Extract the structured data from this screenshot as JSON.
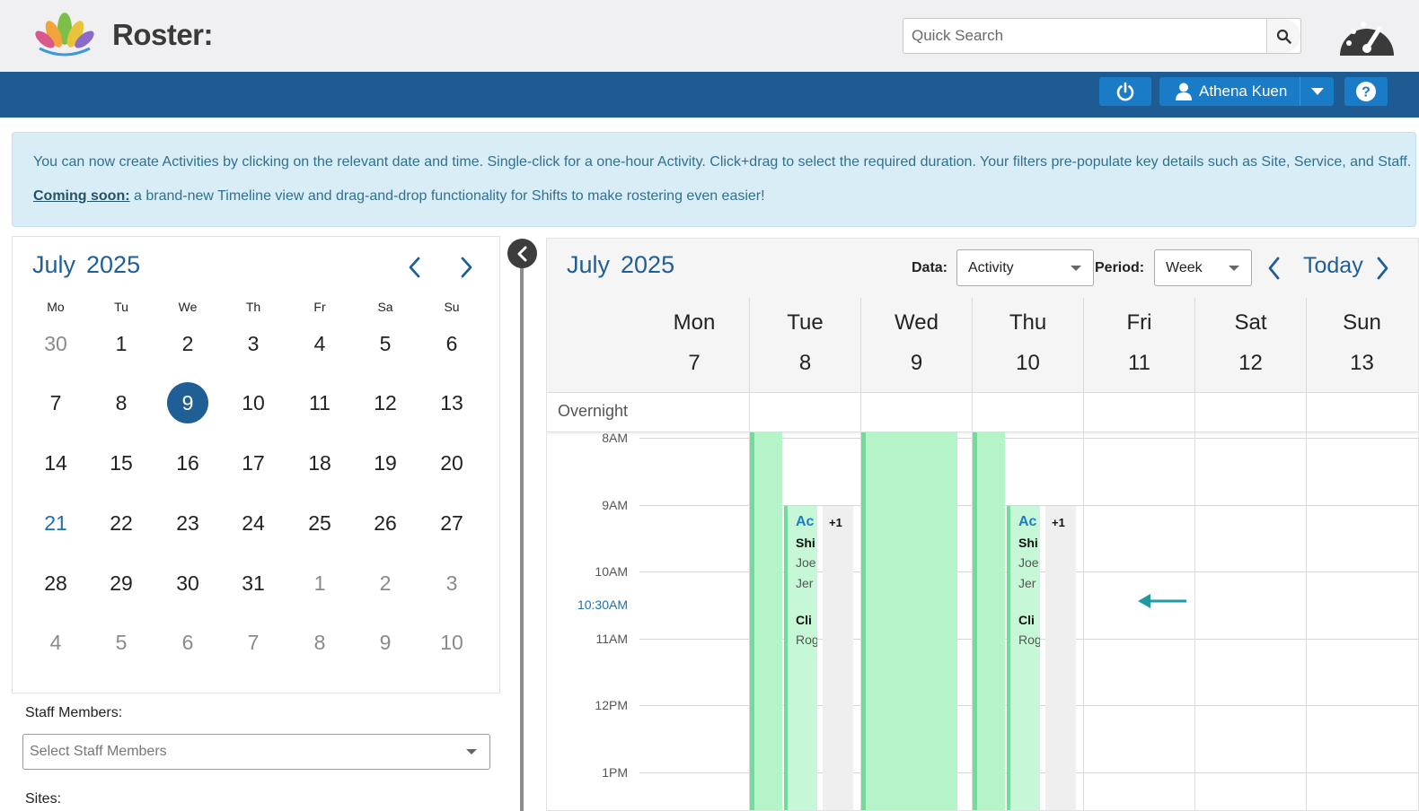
{
  "header": {
    "app_title": "Roster:",
    "search_placeholder": "Quick Search",
    "user_name": "Athena Kuen",
    "icons": [
      "lotus-logo",
      "search-icon",
      "gauge-icon",
      "power-icon",
      "user-icon",
      "caret-down-icon",
      "help-icon"
    ]
  },
  "banner": {
    "line1": "You can now create Activities by clicking on the relevant date and time. Single-click for a one-hour Activity. Click+drag to select the required duration. Your filters pre-populate key details such as Site, Service, and Staff.",
    "link": "Coming soon:",
    "line2": " a brand-new Timeline view and drag-and-drop functionality for Shifts to make rostering even easier!"
  },
  "mini_calendar": {
    "month": "July",
    "year": "2025",
    "weekdays": [
      "Mo",
      "Tu",
      "We",
      "Th",
      "Fr",
      "Sa",
      "Su"
    ],
    "weeks": [
      [
        "30",
        "1",
        "2",
        "3",
        "4",
        "5",
        "6"
      ],
      [
        "7",
        "8",
        "9",
        "10",
        "11",
        "12",
        "13"
      ],
      [
        "14",
        "15",
        "16",
        "17",
        "18",
        "19",
        "20"
      ],
      [
        "21",
        "22",
        "23",
        "24",
        "25",
        "26",
        "27"
      ],
      [
        "28",
        "29",
        "30",
        "31",
        "1",
        "2",
        "3"
      ],
      [
        "4",
        "5",
        "6",
        "7",
        "8",
        "9",
        "10"
      ]
    ],
    "selected_day": "9"
  },
  "filters": {
    "staff_label": "Staff Members:",
    "staff_placeholder": "Select Staff Members",
    "sites_label": "Sites:"
  },
  "week_calendar": {
    "month": "July",
    "year": "2025",
    "data_label": "Data:",
    "data_value": "Activity",
    "period_label": "Period:",
    "period_value": "Week",
    "today_label": "Today",
    "days": [
      {
        "name": "Mon",
        "num": "7"
      },
      {
        "name": "Tue",
        "num": "8"
      },
      {
        "name": "Wed",
        "num": "9"
      },
      {
        "name": "Thu",
        "num": "10"
      },
      {
        "name": "Fri",
        "num": "11"
      },
      {
        "name": "Sat",
        "num": "12"
      },
      {
        "name": "Sun",
        "num": "13"
      }
    ],
    "overnight_label": "Overnight",
    "hours": [
      "8AM",
      "9AM",
      "10AM",
      "11AM",
      "12PM",
      "1PM"
    ],
    "now_label": "10:30AM",
    "events": [
      {
        "day": "Tue",
        "title": "Ac",
        "shift": "Shi",
        "person1": "Joe",
        "person2": "Jer",
        "client_label": "Cli",
        "client": "Roɡ",
        "more": "+1"
      },
      {
        "day": "Thu",
        "title": "Ac",
        "shift": "Shi",
        "person1": "Joe",
        "person2": "Jer",
        "client_label": "Cli",
        "client": "Roɡ",
        "more": "+1"
      }
    ]
  },
  "colors": {
    "brand_blue": "#1e5b93",
    "button_blue": "#1a7bc6",
    "title_blue": "#1f5f96",
    "banner_bg": "#d9edf7",
    "banner_text": "#31708f",
    "event_green": "#b4f4c8",
    "event_edge": "#6fdc97",
    "arrow_teal": "#1e9aa0"
  }
}
